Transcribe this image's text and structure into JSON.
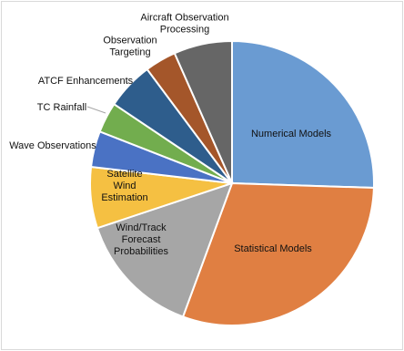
{
  "chart_data": {
    "type": "pie",
    "title": "",
    "series": [
      {
        "values": [
          25.0,
          29.5,
          14.0,
          6.8,
          4.0,
          3.4,
          5.3,
          3.5,
          6.5
        ],
        "labels": [
          "Numerical Models",
          "Statistical Models",
          "Wind/Track Forecast Probabilities",
          "Satellite Wind Estimation",
          "Wave Observations",
          "TC Rainfall",
          "ATCF Enhancements",
          "Observation Targeting",
          "Aircraft Observation Processing"
        ],
        "colors": [
          "#6a9bd2",
          "#e07f42",
          "#a6a6a6",
          "#f5c042",
          "#4a72c4",
          "#72ad4e",
          "#2e5d8c",
          "#a4562a",
          "#666666"
        ]
      }
    ],
    "start_angle_deg": 0,
    "direction": "clockwise",
    "legend": "none",
    "data_labels": "category names"
  }
}
